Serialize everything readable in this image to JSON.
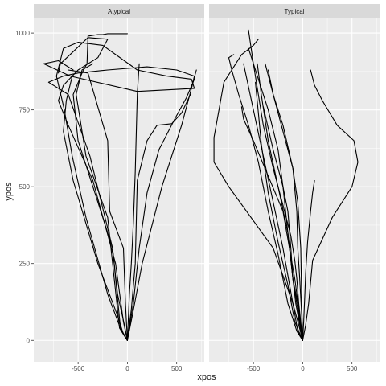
{
  "chart_data": {
    "type": "line",
    "xlabel": "xpos",
    "ylabel": "ypos",
    "xlim": [
      -950,
      780
    ],
    "ylim": [
      -70,
      1050
    ],
    "x_ticks": [
      -500,
      0,
      500
    ],
    "x_tick_labels": [
      "-500",
      "0",
      "500"
    ],
    "y_ticks": [
      0,
      250,
      500,
      750,
      1000
    ],
    "y_tick_labels": [
      "0",
      "250",
      "500",
      "750",
      "1000"
    ],
    "grid": true,
    "legend": "none",
    "colors": {
      "panel_bg": "#ebebeb",
      "grid": "#ffffff",
      "strip_bg": "#d9d9d9",
      "line": "#000000"
    },
    "panels": [
      {
        "name": "Atypical",
        "series": [
          {
            "x": [
              0,
              -60,
              -200,
              -420,
              -560,
              -640,
              -720,
              -650,
              -500,
              -250,
              100,
              400,
              650,
              680,
              100,
              -580,
              -850,
              -700,
              -550
            ],
            "y": [
              0,
              30,
              150,
              400,
              600,
              750,
              860,
              950,
              970,
              960,
              880,
              860,
              850,
              820,
              810,
              860,
              900,
              910,
              880
            ]
          },
          {
            "x": [
              0,
              -40,
              -120,
              -350,
              -600,
              -700,
              -650,
              -500,
              -300,
              -200,
              -400,
              -680,
              -700
            ],
            "y": [
              0,
              60,
              250,
              520,
              700,
              780,
              830,
              880,
              920,
              980,
              985,
              900,
              870
            ]
          },
          {
            "x": [
              0,
              -70,
              -150,
              -380,
              -600,
              -800,
              -650,
              -500,
              -200,
              200,
              500,
              680,
              650
            ],
            "y": [
              0,
              40,
              300,
              600,
              800,
              840,
              860,
              870,
              880,
              890,
              880,
              860,
              820
            ]
          },
          {
            "x": [
              0,
              -30,
              -100,
              -150,
              -300,
              -500,
              -550,
              -460,
              -410,
              -400,
              -300,
              -250,
              -200,
              -150,
              -100,
              -50,
              0
            ],
            "y": [
              0,
              50,
              150,
              300,
              450,
              650,
              800,
              870,
              900,
              990,
              995,
              995,
              998,
              998,
              998,
              998,
              998
            ]
          },
          {
            "x": [
              0,
              60,
              120,
              200,
              320,
              480,
              600,
              680
            ],
            "y": [
              0,
              120,
              300,
              480,
              620,
              720,
              790,
              850
            ]
          },
          {
            "x": [
              0,
              40,
              80,
              100,
              200,
              300,
              450,
              550,
              640
            ],
            "y": [
              0,
              100,
              250,
              520,
              650,
              700,
              705,
              740,
              800
            ]
          },
          {
            "x": [
              0,
              50,
              150,
              350,
              550,
              700
            ],
            "y": [
              0,
              80,
              250,
              500,
              700,
              880
            ]
          },
          {
            "x": [
              0,
              -80,
              -200,
              -420,
              -520,
              -460,
              -350
            ],
            "y": [
              0,
              40,
              400,
              600,
              800,
              880,
              900
            ]
          },
          {
            "x": [
              0,
              -20,
              -40,
              -180,
              -200,
              -400,
              -600
            ],
            "y": [
              0,
              120,
              300,
              420,
              650,
              870,
              880
            ]
          },
          {
            "x": [
              0,
              20,
              40,
              60,
              80,
              100,
              120
            ],
            "y": [
              0,
              150,
              250,
              380,
              550,
              800,
              900
            ]
          },
          {
            "x": [
              0,
              -40,
              -100,
              -300,
              -550,
              -650,
              -620,
              -560
            ],
            "y": [
              0,
              20,
              80,
              250,
              520,
              680,
              780,
              860
            ]
          }
        ]
      },
      {
        "name": "Typical",
        "series": [
          {
            "x": [
              0,
              -50,
              -100,
              -300,
              -750,
              -900,
              -900,
              -850,
              -800,
              -620,
              -500,
              -450
            ],
            "y": [
              0,
              30,
              120,
              300,
              500,
              580,
              660,
              750,
              840,
              930,
              960,
              980
            ]
          },
          {
            "x": [
              0,
              -10,
              -30,
              -50,
              -60,
              -100,
              -200,
              -300,
              -350
            ],
            "y": [
              0,
              80,
              200,
              300,
              420,
              560,
              700,
              800,
              880
            ]
          },
          {
            "x": [
              0,
              30,
              60,
              100,
              300,
              500,
              560,
              520,
              350,
              200,
              120,
              80
            ],
            "y": [
              0,
              50,
              120,
              260,
              400,
              500,
              580,
              650,
              700,
              780,
              830,
              880
            ]
          },
          {
            "x": [
              0,
              -20,
              -50,
              -100,
              -150,
              -200,
              -250,
              -350,
              -450,
              -550
            ],
            "y": [
              0,
              40,
              120,
              200,
              350,
              500,
              620,
              750,
              850,
              950
            ]
          },
          {
            "x": [
              0,
              -40,
              -100,
              -200,
              -300,
              -400,
              -500,
              -600
            ],
            "y": [
              0,
              50,
              120,
              300,
              450,
              600,
              750,
              900
            ]
          },
          {
            "x": [
              0,
              -60,
              -150,
              -250,
              -350,
              -450,
              -550,
              -650,
              -720,
              -750,
              -700
            ],
            "y": [
              0,
              30,
              120,
              280,
              420,
              580,
              700,
              800,
              880,
              920,
              930
            ]
          },
          {
            "x": [
              0,
              -20,
              -40,
              -60,
              -80,
              -120,
              -200,
              -300,
              -400,
              -500,
              -550
            ],
            "y": [
              0,
              60,
              120,
              200,
              260,
              340,
              440,
              560,
              700,
              900,
              1010
            ]
          },
          {
            "x": [
              0,
              -30,
              -80,
              -200,
              -500,
              -600,
              -620
            ],
            "y": [
              0,
              80,
              200,
              420,
              650,
              720,
              760
            ]
          },
          {
            "x": [
              0,
              -10,
              -20,
              -50,
              -100,
              -200,
              -300,
              -380
            ],
            "y": [
              0,
              120,
              300,
              450,
              560,
              680,
              800,
              900
            ]
          },
          {
            "x": [
              0,
              -30,
              -70,
              -100,
              -120,
              -150,
              -200,
              -300,
              -400
            ],
            "y": [
              0,
              50,
              120,
              200,
              300,
              420,
              500,
              620,
              760
            ]
          },
          {
            "x": [
              0,
              -50,
              -100,
              -150,
              -250,
              -350,
              -420,
              -460
            ],
            "y": [
              0,
              100,
              200,
              350,
              500,
              650,
              800,
              900
            ]
          },
          {
            "x": [
              0,
              10,
              20,
              30,
              50,
              80,
              100,
              120
            ],
            "y": [
              0,
              60,
              140,
              220,
              320,
              420,
              480,
              520
            ]
          },
          {
            "x": [
              0,
              -80,
              -150,
              -250,
              -350,
              -420,
              -450,
              -480
            ],
            "y": [
              0,
              60,
              180,
              320,
              480,
              640,
              740,
              840
            ]
          }
        ]
      }
    ]
  }
}
